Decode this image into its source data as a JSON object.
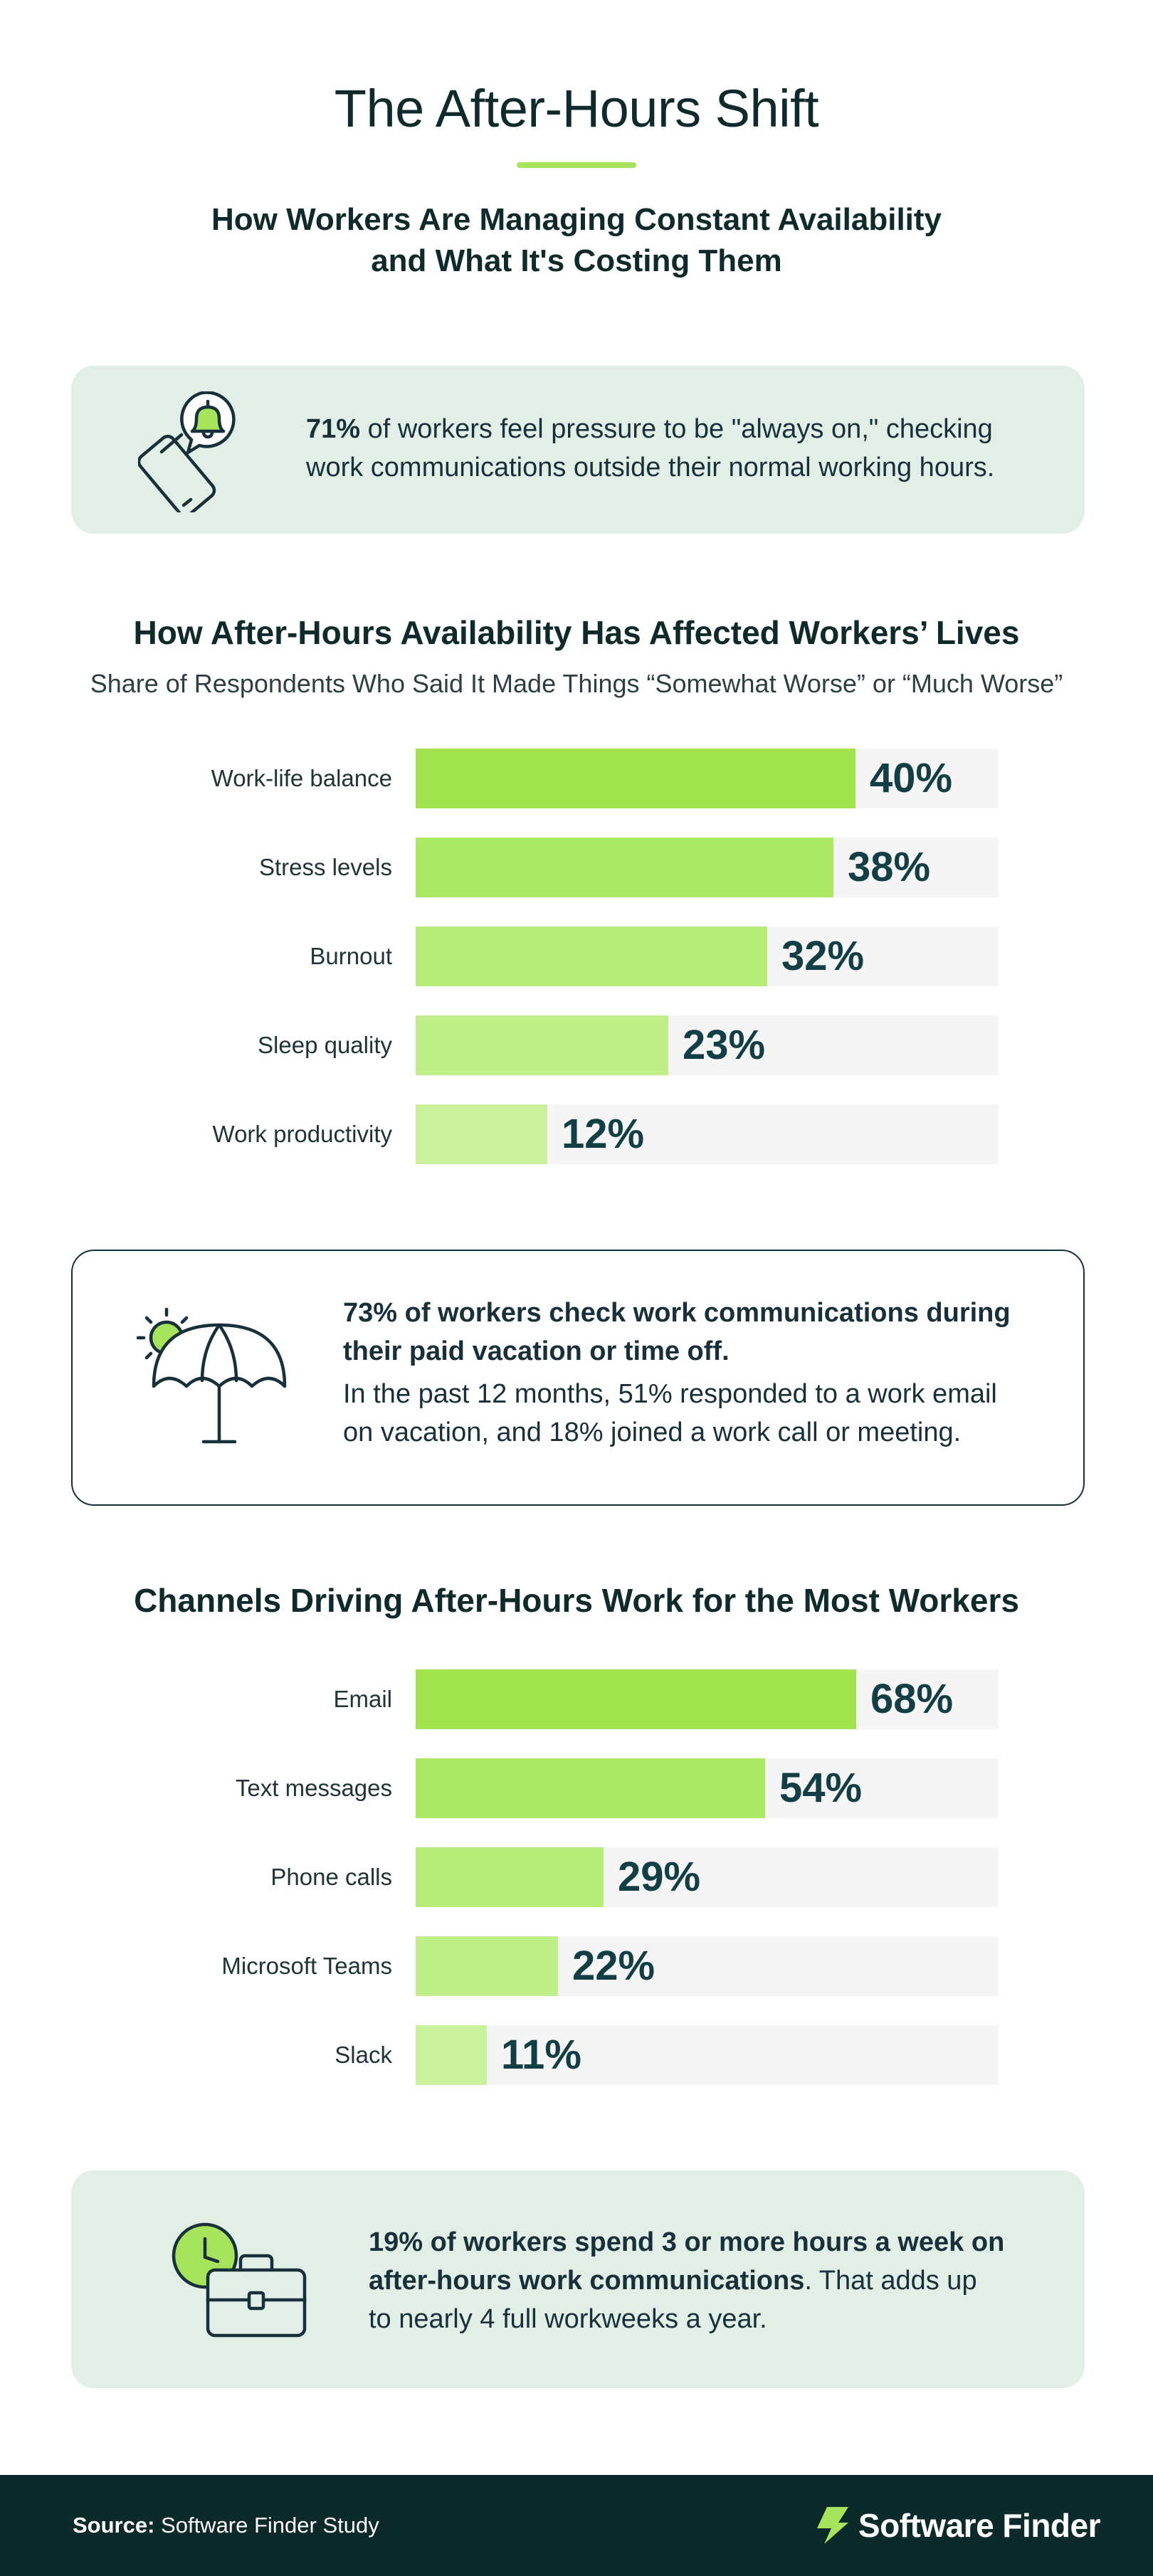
{
  "header": {
    "title": "The After-Hours Shift",
    "subtitle_line1": "How Workers Are Managing Constant Availability",
    "subtitle_line2": "and What It's Costing Them"
  },
  "callout_1": {
    "icon": "phone-bell-icon",
    "highlight": "71%",
    "text_line1": " of workers feel pressure to be \"always on,\" checking",
    "text_line2": "work communications outside their normal working hours."
  },
  "chart_data": [
    {
      "type": "bar",
      "orientation": "horizontal",
      "title": "How After-Hours Availability Has Affected Workers’ Lives",
      "subtitle": "Share of Respondents Who Said It Made Things “Somewhat Worse” or “Much Worse”",
      "categories": [
        "Work-life balance",
        "Stress levels",
        "Burnout",
        "Sleep quality",
        "Work productivity"
      ],
      "values": [
        40,
        38,
        32,
        23,
        12
      ],
      "labels": [
        "40%",
        "38%",
        "32%",
        "23%",
        "12%"
      ],
      "xlim": [
        0,
        53
      ],
      "unit": "%",
      "grid": false
    },
    {
      "type": "bar",
      "orientation": "horizontal",
      "title": "Channels Driving After-Hours Work for the Most Workers",
      "categories": [
        "Email",
        "Text messages",
        "Phone calls",
        "Microsoft Teams",
        "Slack"
      ],
      "values": [
        68,
        54,
        29,
        22,
        11
      ],
      "labels": [
        "68%",
        "54%",
        "29%",
        "22%",
        "11%"
      ],
      "xlim": [
        0,
        90
      ],
      "unit": "%",
      "grid": false
    }
  ],
  "callout_2": {
    "icon": "umbrella-sun-icon",
    "bold_line1": "73% of workers check work communications during",
    "bold_line2": "their paid vacation or time off.",
    "text_line1": "In the past 12 months, 51% responded to a work email",
    "text_line2": "on vacation, and 18% joined a work call or meeting."
  },
  "callout_3": {
    "icon": "clock-briefcase-icon",
    "bold_line1": "19% of workers spend 3 or more hours a week on",
    "bold_line2": "after-hours work communications",
    "text_line2": ". That adds up",
    "text_line3": "to nearly 4 full workweeks a year."
  },
  "footer": {
    "source_label": "Source:",
    "source_text": " Software Finder Study",
    "brand_icon": "software-finder-logo-icon",
    "brand_name": "Software Finder"
  },
  "colors": {
    "accent": "#a6e45b",
    "bar_shades": [
      "#a0e34f",
      "#abe863",
      "#b6eb77",
      "#c0ee89",
      "#caf09b"
    ],
    "track": "#f5f5f5",
    "text_dark": "#0f2a2a",
    "value_text": "#123e45",
    "card_green": "#e1efe6",
    "footer_bg": "#0d2a2b"
  }
}
